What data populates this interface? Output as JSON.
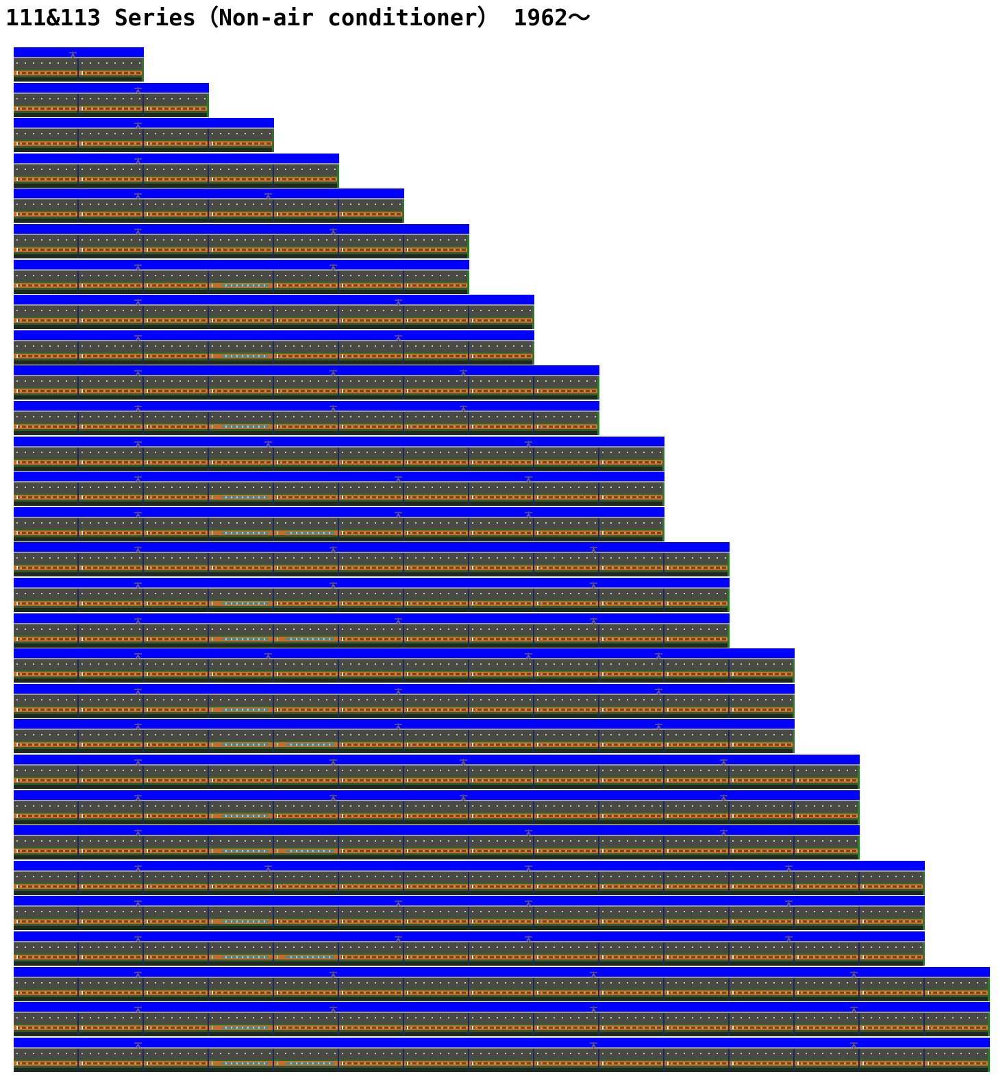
{
  "page": {
    "title": "111&113 Series（Non-air conditioner） 1962～"
  },
  "colors": {
    "background": "#ffffff",
    "sky": "#0000ff",
    "body_orange": "#c86a28",
    "body_green": "#2f5a2f",
    "roof_gray": "#4a4a44"
  },
  "formations": [
    {
      "cars": 2,
      "green": [],
      "pantographs": [
        1
      ]
    },
    {
      "cars": 3,
      "green": [],
      "pantographs": [
        2
      ]
    },
    {
      "cars": 4,
      "green": [],
      "pantographs": [
        2
      ]
    },
    {
      "cars": 5,
      "green": [],
      "pantographs": [
        2
      ]
    },
    {
      "cars": 6,
      "green": [],
      "pantographs": [
        2,
        4
      ]
    },
    {
      "cars": 7,
      "green": [],
      "pantographs": [
        2,
        5
      ]
    },
    {
      "cars": 7,
      "green": [
        4
      ],
      "pantographs": [
        2,
        5
      ]
    },
    {
      "cars": 8,
      "green": [],
      "pantographs": [
        2,
        6
      ]
    },
    {
      "cars": 8,
      "green": [
        4
      ],
      "pantographs": [
        2,
        6
      ]
    },
    {
      "cars": 9,
      "green": [],
      "pantographs": [
        2,
        5,
        7
      ]
    },
    {
      "cars": 9,
      "green": [
        4
      ],
      "pantographs": [
        2,
        5,
        7
      ]
    },
    {
      "cars": 10,
      "green": [],
      "pantographs": [
        2,
        4,
        8
      ]
    },
    {
      "cars": 10,
      "green": [
        4
      ],
      "pantographs": [
        2,
        6,
        8
      ]
    },
    {
      "cars": 10,
      "green": [
        4,
        5
      ],
      "pantographs": [
        2,
        6,
        8
      ]
    },
    {
      "cars": 11,
      "green": [],
      "pantographs": [
        2,
        5,
        9
      ]
    },
    {
      "cars": 11,
      "green": [
        4
      ],
      "pantographs": [
        2,
        5,
        9
      ]
    },
    {
      "cars": 11,
      "green": [
        4,
        5
      ],
      "pantographs": [
        2,
        6,
        9
      ]
    },
    {
      "cars": 12,
      "green": [],
      "pantographs": [
        2,
        4,
        8,
        10
      ]
    },
    {
      "cars": 12,
      "green": [
        4
      ],
      "pantographs": [
        2,
        6,
        10
      ]
    },
    {
      "cars": 12,
      "green": [
        4,
        5
      ],
      "pantographs": [
        2,
        6,
        10
      ]
    },
    {
      "cars": 13,
      "green": [],
      "pantographs": [
        2,
        5,
        7,
        11
      ]
    },
    {
      "cars": 13,
      "green": [
        4
      ],
      "pantographs": [
        2,
        5,
        7,
        11
      ]
    },
    {
      "cars": 13,
      "green": [
        4,
        5
      ],
      "pantographs": [
        2,
        8,
        11
      ]
    },
    {
      "cars": 14,
      "green": [],
      "pantographs": [
        2,
        4,
        8,
        12
      ]
    },
    {
      "cars": 14,
      "green": [
        4
      ],
      "pantographs": [
        2,
        6,
        8,
        12
      ]
    },
    {
      "cars": 14,
      "green": [
        4,
        5
      ],
      "pantographs": [
        2,
        6,
        8,
        12
      ]
    },
    {
      "cars": 15,
      "green": [],
      "pantographs": [
        2,
        5,
        9,
        13
      ]
    },
    {
      "cars": 15,
      "green": [
        4
      ],
      "pantographs": [
        2,
        5,
        9,
        13
      ]
    },
    {
      "cars": 15,
      "green": [
        4,
        5
      ],
      "pantographs": [
        2,
        9,
        13
      ]
    }
  ]
}
